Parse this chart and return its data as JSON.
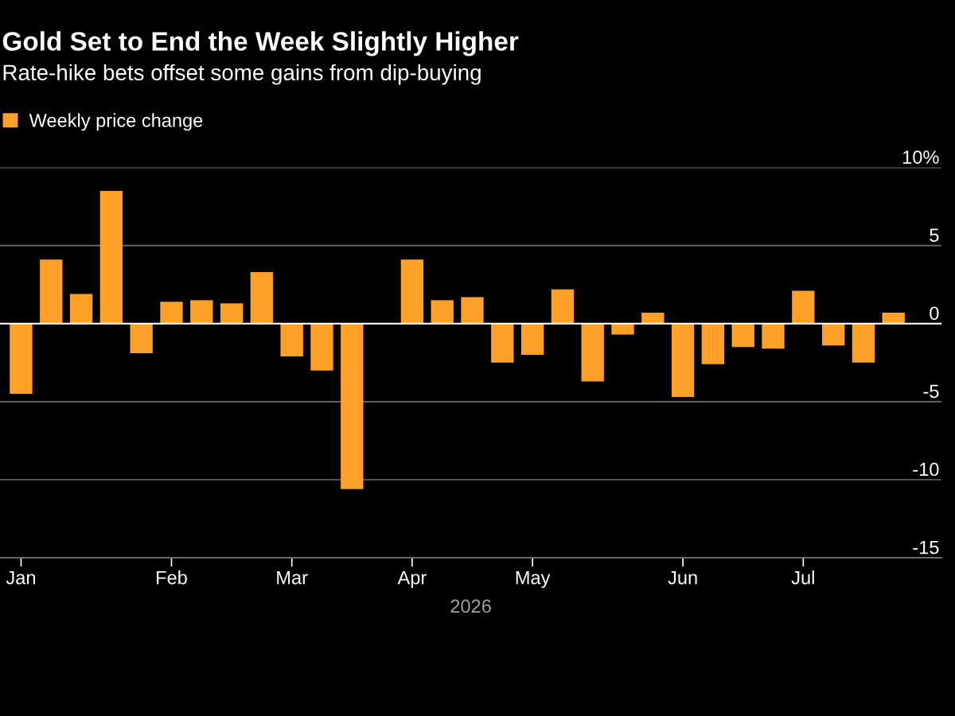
{
  "chart_data": {
    "type": "bar",
    "title": "Gold Set to End the Week Slightly Higher",
    "subtitle": "Rate-hike bets offset some gains from dip-buying",
    "xlabel": "2026",
    "categories": [
      "Jan",
      null,
      null,
      null,
      null,
      "Feb",
      null,
      null,
      null,
      "Mar",
      null,
      null,
      null,
      "Apr",
      null,
      null,
      null,
      "May",
      null,
      null,
      null,
      null,
      "Jun",
      null,
      null,
      null,
      "Jul",
      null,
      null,
      null
    ],
    "series": [
      {
        "name": "Weekly price change",
        "color": "#ffa028",
        "values": [
          -4.5,
          4.1,
          1.9,
          8.5,
          -1.9,
          1.4,
          1.5,
          1.3,
          3.3,
          -2.1,
          -3.0,
          -10.6,
          null,
          4.1,
          1.5,
          1.7,
          -2.5,
          -2.0,
          2.2,
          -3.7,
          -0.7,
          0.7,
          -4.7,
          -2.6,
          -1.5,
          -1.6,
          2.1,
          -1.4,
          -2.5,
          0.7
        ]
      }
    ],
    "ylim": [
      -15,
      10
    ],
    "yticks": [
      -15,
      -10,
      -5,
      0,
      5,
      {
        "value": 10,
        "label": "10%"
      }
    ],
    "ref_lines": [
      {
        "axis": "y",
        "value": 0,
        "color": "#ffffff"
      }
    ],
    "grid": "y",
    "legend": "top left"
  }
}
